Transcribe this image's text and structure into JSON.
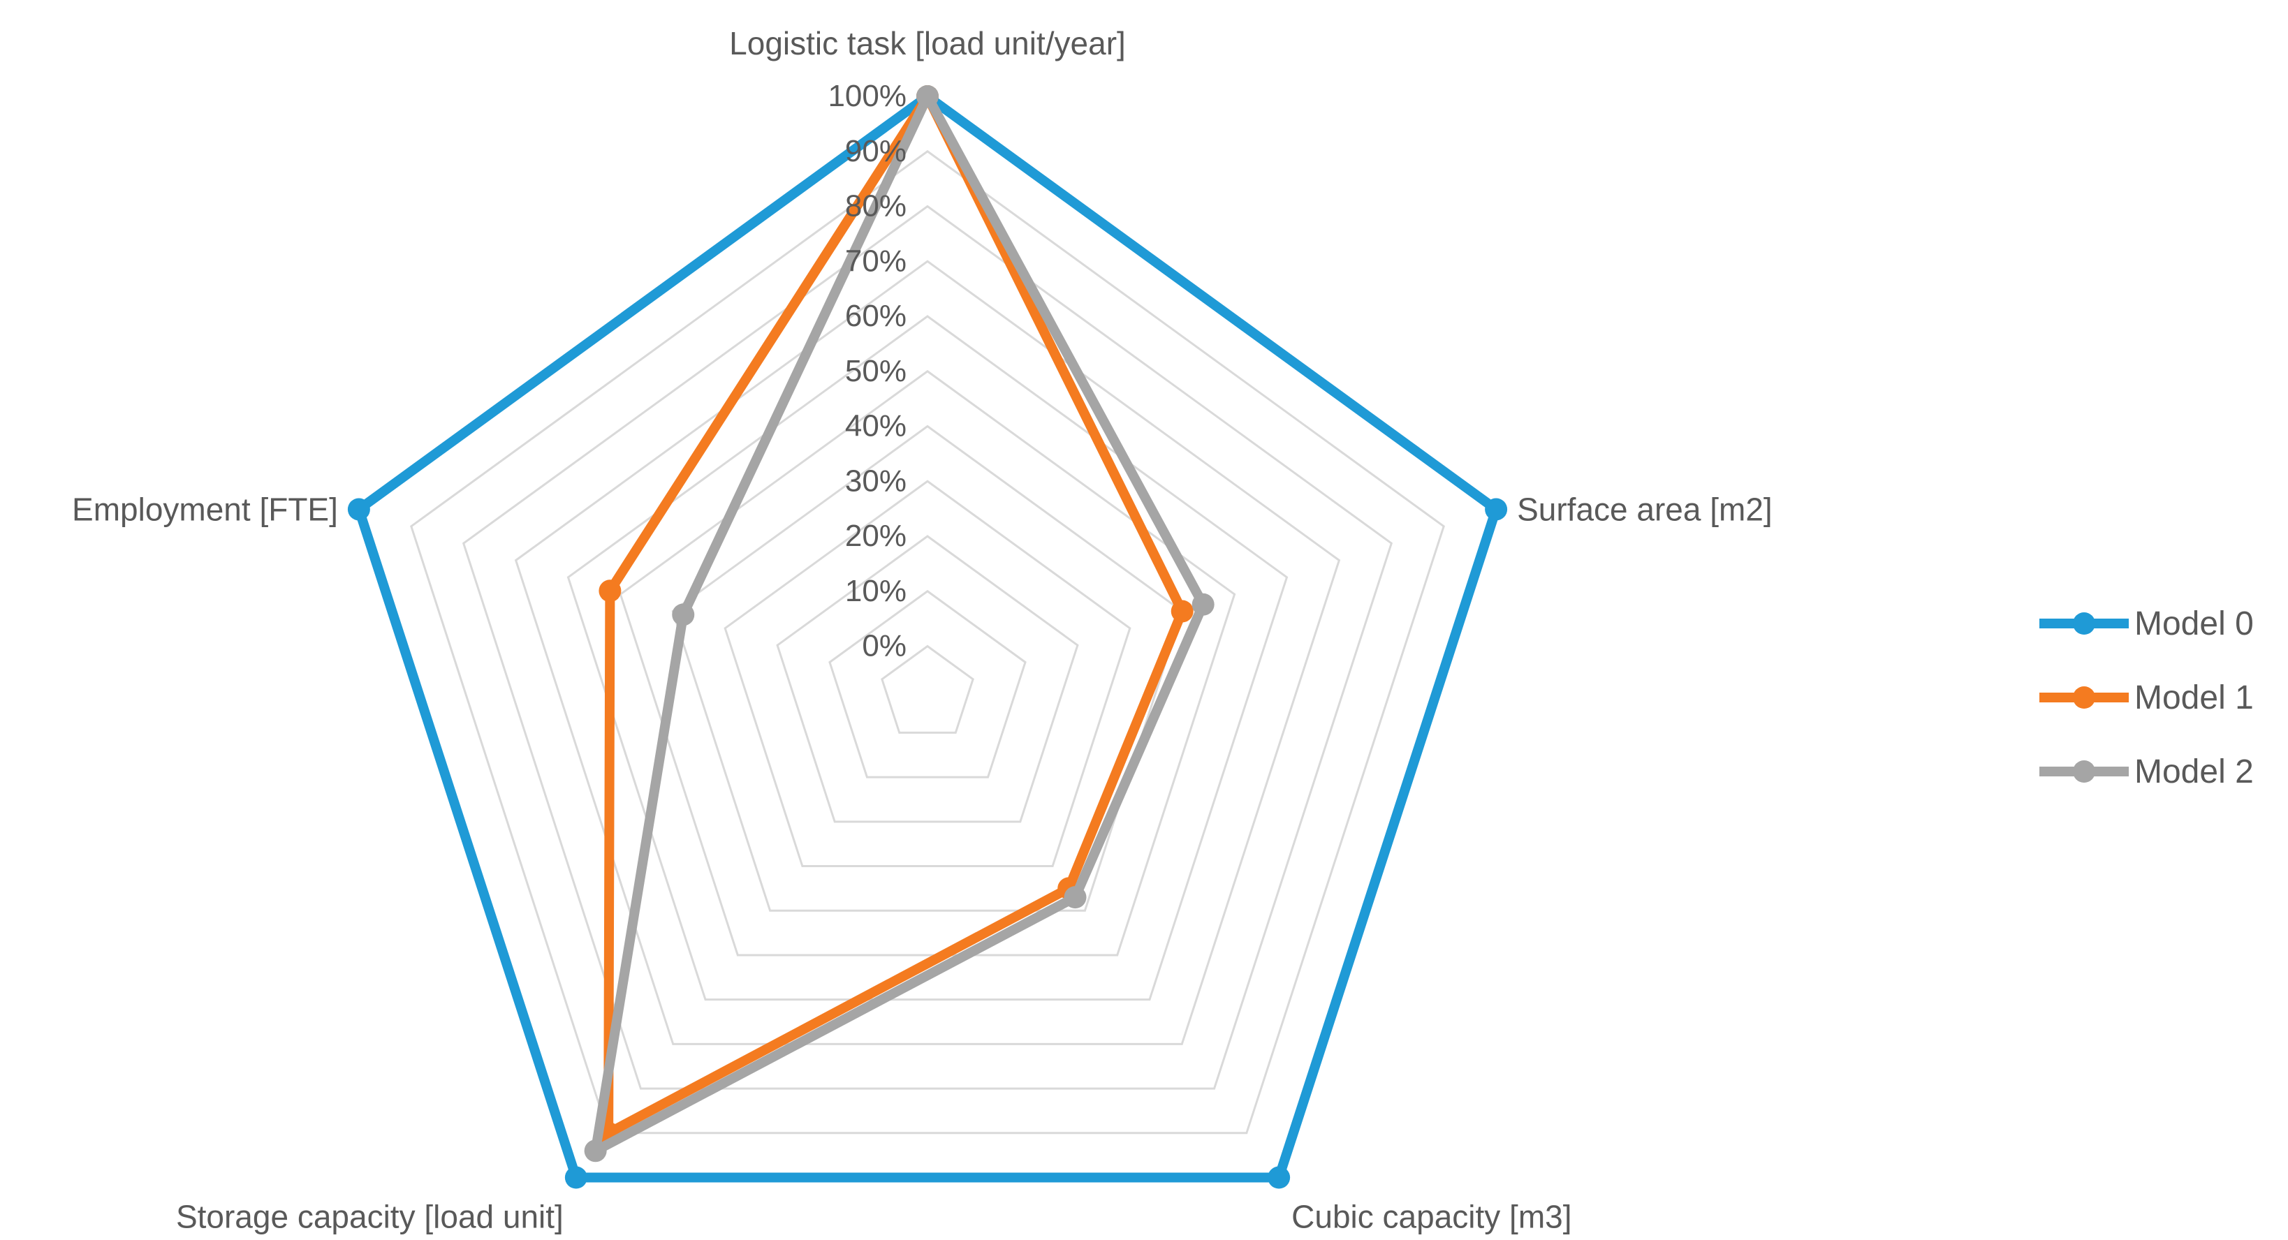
{
  "chart_data": {
    "type": "radar",
    "title": "",
    "axes": [
      "Logistic task [load unit/year]",
      "Surface area [m2]",
      "Cubic capacity [m3]",
      "Storage capacity [load unit]",
      "Employment  [FTE]"
    ],
    "tick_labels": [
      "0%",
      "10%",
      "20%",
      "30%",
      "40%",
      "50%",
      "60%",
      "70%",
      "80%",
      "90%",
      "100%"
    ],
    "rlim": [
      0,
      100
    ],
    "grid": true,
    "legend_position": "right",
    "series": [
      {
        "name": "Model 0",
        "color": "#1f9ad6",
        "values": [
          100,
          100,
          100,
          100,
          100
        ]
      },
      {
        "name": "Model 1",
        "color": "#f47b20",
        "values": [
          100,
          40,
          35,
          90,
          52
        ]
      },
      {
        "name": "Model 2",
        "color": "#a5a5a5",
        "values": [
          100,
          44,
          37,
          94,
          38
        ]
      }
    ]
  }
}
